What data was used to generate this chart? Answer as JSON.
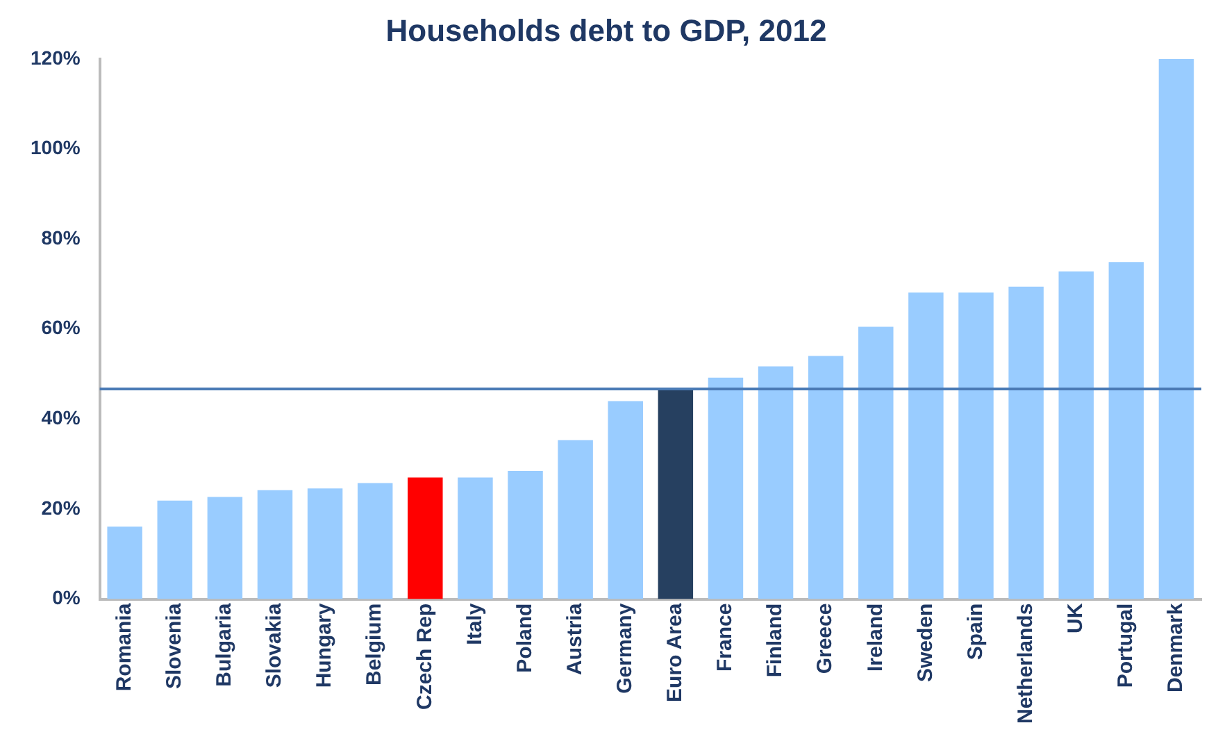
{
  "chart_data": {
    "type": "bar",
    "title": "Households debt to GDP, 2012",
    "categories": [
      "Romania",
      "Slovenia",
      "Bulgaria",
      "Slovakia",
      "Hungary",
      "Belgium",
      "Czech Rep",
      "Italy",
      "Poland",
      "Austria",
      "Germany",
      "Euro Area",
      "France",
      "Finland",
      "Greece",
      "Ireland",
      "Sweden",
      "Spain",
      "Netherlands",
      "UK",
      "Portugal",
      "Denmark"
    ],
    "values": [
      16.1,
      21.9,
      22.7,
      24.2,
      24.6,
      25.8,
      27.0,
      27.0,
      28.5,
      35.3,
      44.0,
      46.4,
      49.2,
      51.7,
      54.0,
      60.5,
      68.1,
      68.1,
      69.4,
      72.8,
      74.9,
      120
    ],
    "colors": [
      "#99ccff",
      "#99ccff",
      "#99ccff",
      "#99ccff",
      "#99ccff",
      "#99ccff",
      "#ff0000",
      "#99ccff",
      "#99ccff",
      "#99ccff",
      "#99ccff",
      "#264060",
      "#99ccff",
      "#99ccff",
      "#99ccff",
      "#99ccff",
      "#99ccff",
      "#99ccff",
      "#99ccff",
      "#99ccff",
      "#99ccff",
      "#99ccff"
    ],
    "ylim": [
      0,
      120
    ],
    "yticks": [
      {
        "value": 0,
        "label": "0%"
      },
      {
        "value": 20,
        "label": "20%"
      },
      {
        "value": 40,
        "label": "40%"
      },
      {
        "value": 60,
        "label": "60%"
      },
      {
        "value": 80,
        "label": "80%"
      },
      {
        "value": 100,
        "label": "100%"
      },
      {
        "value": 120,
        "label": "120%"
      }
    ],
    "ref_lines": [
      {
        "axis": "y",
        "value": 46.7,
        "color": "#4a7ab5"
      }
    ],
    "grid": false,
    "legend": false
  }
}
